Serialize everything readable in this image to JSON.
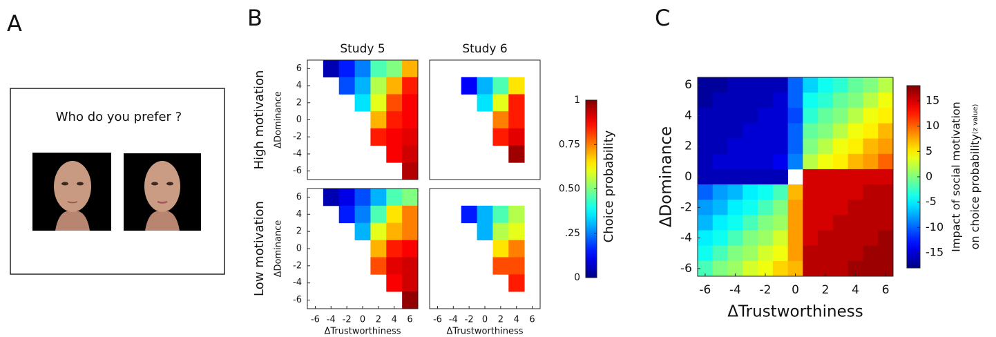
{
  "panel_a": {
    "label": "A",
    "prompt": "Who do you prefer ?"
  },
  "panel_b": {
    "label": "B",
    "colormap": "jet",
    "colorbar": {
      "label": "Choice probability",
      "lim": [
        0,
        1
      ],
      "ticks": [
        0,
        {
          "value": 0.25,
          "label": ".25"
        },
        {
          "value": 0.5,
          "label": "0.50"
        },
        {
          "value": 0.75,
          "label": "0.75"
        },
        1
      ]
    }
  },
  "chart_data": [
    {
      "type": "heatmap",
      "title": "Study 5",
      "row_label": "High motivation",
      "ylabel": "ΔDominance",
      "x": [
        -6,
        -4,
        -2,
        0,
        2,
        4,
        6
      ],
      "y": [
        6,
        4,
        2,
        0,
        -2,
        -4,
        -6
      ],
      "xlim": [
        -7,
        7
      ],
      "ylim": [
        -7,
        7
      ],
      "yticks": [
        6,
        4,
        2,
        0,
        -2,
        -4,
        -6
      ],
      "values": [
        [
          null,
          0.05,
          0.15,
          0.25,
          0.45,
          0.5,
          0.7
        ],
        [
          null,
          null,
          0.2,
          0.3,
          0.55,
          0.7,
          0.85
        ],
        [
          null,
          null,
          null,
          0.35,
          0.6,
          0.8,
          0.88
        ],
        [
          null,
          null,
          null,
          null,
          0.7,
          0.85,
          0.88
        ],
        [
          null,
          null,
          null,
          null,
          0.85,
          0.88,
          0.9
        ],
        [
          null,
          null,
          null,
          null,
          null,
          0.88,
          0.92
        ],
        [
          null,
          null,
          null,
          null,
          null,
          null,
          0.95
        ]
      ]
    },
    {
      "type": "heatmap",
      "title": "Study 6",
      "x": [
        -6,
        -4,
        -2,
        0,
        2,
        4,
        6
      ],
      "y": [
        6,
        4,
        2,
        0,
        -2,
        -4,
        -6
      ],
      "xlim": [
        -7,
        7
      ],
      "ylim": [
        -7,
        7
      ],
      "values": [
        [
          null,
          null,
          null,
          null,
          null,
          null,
          null
        ],
        [
          null,
          null,
          0.12,
          0.3,
          0.45,
          0.65,
          null
        ],
        [
          null,
          null,
          null,
          0.35,
          0.6,
          0.85,
          null
        ],
        [
          null,
          null,
          null,
          null,
          0.75,
          0.85,
          null
        ],
        [
          null,
          null,
          null,
          null,
          0.85,
          0.9,
          null
        ],
        [
          null,
          null,
          null,
          null,
          null,
          0.97,
          null
        ],
        [
          null,
          null,
          null,
          null,
          null,
          null,
          null
        ]
      ]
    },
    {
      "type": "heatmap",
      "row_label": "Low motivation",
      "ylabel": "ΔDominance",
      "xlabel": "ΔTrustworthiness",
      "x": [
        -6,
        -4,
        -2,
        0,
        2,
        4,
        6
      ],
      "y": [
        6,
        4,
        2,
        0,
        -2,
        -4,
        -6
      ],
      "xlim": [
        -7,
        7
      ],
      "ylim": [
        -7,
        7
      ],
      "xticks": [
        -6,
        -4,
        -2,
        0,
        2,
        4,
        6
      ],
      "yticks": [
        6,
        4,
        2,
        0,
        -2,
        -4,
        -6
      ],
      "values": [
        [
          null,
          0.05,
          0.1,
          0.2,
          0.3,
          0.45,
          0.5
        ],
        [
          null,
          null,
          0.15,
          0.25,
          0.45,
          0.65,
          0.75
        ],
        [
          null,
          null,
          null,
          0.3,
          0.6,
          0.7,
          0.75
        ],
        [
          null,
          null,
          null,
          null,
          0.7,
          0.85,
          0.88
        ],
        [
          null,
          null,
          null,
          null,
          0.8,
          0.9,
          0.92
        ],
        [
          null,
          null,
          null,
          null,
          null,
          0.88,
          0.92
        ],
        [
          null,
          null,
          null,
          null,
          null,
          null,
          0.98
        ]
      ]
    },
    {
      "type": "heatmap",
      "xlabel": "ΔTrustworthiness",
      "x": [
        -6,
        -4,
        -2,
        0,
        2,
        4,
        6
      ],
      "y": [
        6,
        4,
        2,
        0,
        -2,
        -4,
        -6
      ],
      "xlim": [
        -7,
        7
      ],
      "ylim": [
        -7,
        7
      ],
      "xticks": [
        -6,
        -4,
        -2,
        0,
        2,
        4,
        6
      ],
      "values": [
        [
          null,
          null,
          null,
          null,
          null,
          null,
          null
        ],
        [
          null,
          null,
          0.15,
          0.3,
          0.45,
          0.55,
          null
        ],
        [
          null,
          null,
          null,
          0.3,
          0.55,
          0.6,
          null
        ],
        [
          null,
          null,
          null,
          null,
          0.65,
          0.75,
          null
        ],
        [
          null,
          null,
          null,
          null,
          0.8,
          0.8,
          null
        ],
        [
          null,
          null,
          null,
          null,
          null,
          0.85,
          null
        ],
        [
          null,
          null,
          null,
          null,
          null,
          null,
          null
        ]
      ]
    },
    {
      "type": "heatmap",
      "label": "C",
      "xlabel": "ΔTrustworthiness",
      "ylabel": "ΔDominance",
      "colormap": "jet",
      "x": [
        -6,
        -5,
        -4,
        -3,
        -2,
        -1,
        0,
        1,
        2,
        3,
        4,
        5,
        6
      ],
      "y": [
        6,
        5,
        4,
        3,
        2,
        1,
        0,
        -1,
        -2,
        -3,
        -4,
        -5,
        -6
      ],
      "xlim": [
        -6.5,
        6.5
      ],
      "ylim": [
        -6.5,
        6.5
      ],
      "xticks": [
        -6,
        -4,
        -2,
        0,
        2,
        4,
        6
      ],
      "yticks": [
        6,
        4,
        2,
        0,
        -2,
        -4,
        -6
      ],
      "values": [
        [
          -17,
          -17,
          -16,
          -16,
          -16,
          -16,
          -10,
          -6,
          -4,
          -3,
          -1,
          0,
          2
        ],
        [
          -17,
          -16,
          -16,
          -16,
          -16,
          -15,
          -10,
          -4,
          -3,
          -1,
          0,
          2,
          4
        ],
        [
          -16,
          -16,
          -16,
          -16,
          -15,
          -15,
          -11,
          -3,
          -1,
          0,
          2,
          4,
          5
        ],
        [
          -16,
          -16,
          -16,
          -15,
          -15,
          -15,
          -10,
          -1,
          0,
          2,
          4,
          5,
          7
        ],
        [
          -16,
          -16,
          -15,
          -15,
          -15,
          -15,
          -10,
          0,
          2,
          4,
          5,
          7,
          8
        ],
        [
          -16,
          -15,
          -15,
          -15,
          -15,
          -14,
          -9,
          2,
          4,
          5,
          7,
          8,
          10
        ],
        [
          -16,
          -16,
          -16,
          -16,
          -16,
          -16,
          null,
          15,
          15,
          15,
          15,
          15,
          15
        ],
        [
          -10,
          -8,
          -7,
          -5,
          -4,
          -2,
          7,
          15,
          15,
          15,
          15,
          16,
          16
        ],
        [
          -8,
          -7,
          -5,
          -4,
          -2,
          0,
          8,
          15,
          15,
          15,
          16,
          16,
          16
        ],
        [
          -7,
          -5,
          -4,
          -2,
          0,
          1,
          8,
          15,
          15,
          16,
          16,
          16,
          16
        ],
        [
          -5,
          -4,
          -2,
          0,
          1,
          3,
          8,
          15,
          16,
          16,
          16,
          16,
          17
        ],
        [
          -4,
          -2,
          0,
          1,
          3,
          4,
          8,
          16,
          16,
          16,
          16,
          17,
          17
        ],
        [
          -2,
          0,
          1,
          3,
          4,
          6,
          7,
          16,
          16,
          16,
          17,
          17,
          17
        ]
      ],
      "colorbar": {
        "label": "Impact of social motivation",
        "label2": "on choice probability",
        "unit": "(z value)",
        "lim": [
          -18,
          18
        ],
        "ticks": [
          15,
          10,
          5,
          0,
          -5,
          -10,
          -15
        ]
      }
    }
  ]
}
